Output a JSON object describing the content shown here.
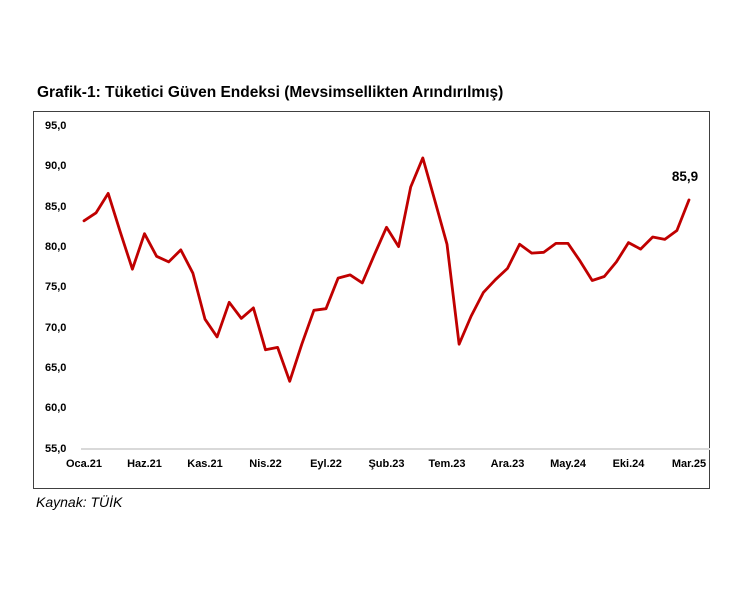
{
  "header": {
    "title": "Grafik-1: Tüketici Güven Endeksi (Mevsimsellikten Arındırılmış)"
  },
  "annotation": {
    "last_value_label": "85,9"
  },
  "source": {
    "label": "Kaynak: TÜİK"
  },
  "chart_data": {
    "type": "line",
    "title": "Grafik-1: Tüketici Güven Endeksi (Mevsimsellikten Arındırılmış)",
    "series_name": "Tüketici Güven Endeksi (Mevsimsellikten Arındırılmış)",
    "frequency": "monthly",
    "x_axis": {
      "start_month": "Oca.21",
      "end_month": "Mar.25",
      "tick_labels": [
        "Oca.21",
        "Haz.21",
        "Kas.21",
        "Nis.22",
        "Eyl.22",
        "Şub.23",
        "Tem.23",
        "Ara.23",
        "May.24",
        "Eki.24",
        "Mar.25"
      ],
      "tick_month_indices": [
        0,
        5,
        10,
        15,
        20,
        25,
        30,
        35,
        40,
        45,
        50
      ]
    },
    "y_axis": {
      "tick_labels": [
        "95,0",
        "90,0",
        "85,0",
        "80,0",
        "75,0",
        "70,0",
        "65,0",
        "60,0",
        "55,0"
      ],
      "tick_values": [
        95,
        90,
        85,
        80,
        75,
        70,
        65,
        60,
        55
      ],
      "ylim": [
        55,
        95
      ]
    },
    "values": [
      83.3,
      84.3,
      86.7,
      81.9,
      77.3,
      81.7,
      78.9,
      78.2,
      79.7,
      76.8,
      71.1,
      68.9,
      73.2,
      71.2,
      72.5,
      67.3,
      67.6,
      63.4,
      68.0,
      72.2,
      72.4,
      76.2,
      76.6,
      75.6,
      79.1,
      82.5,
      80.1,
      87.5,
      91.1,
      85.8,
      80.4,
      68.0,
      71.5,
      74.4,
      76.0,
      77.4,
      80.4,
      79.3,
      79.4,
      80.5,
      80.5,
      78.3,
      75.9,
      76.4,
      78.2,
      80.6,
      79.8,
      81.3,
      81.0,
      82.1,
      85.9
    ],
    "last_point_label": "85,9",
    "line_color": "#C00000",
    "grid": false,
    "legend": "none"
  }
}
